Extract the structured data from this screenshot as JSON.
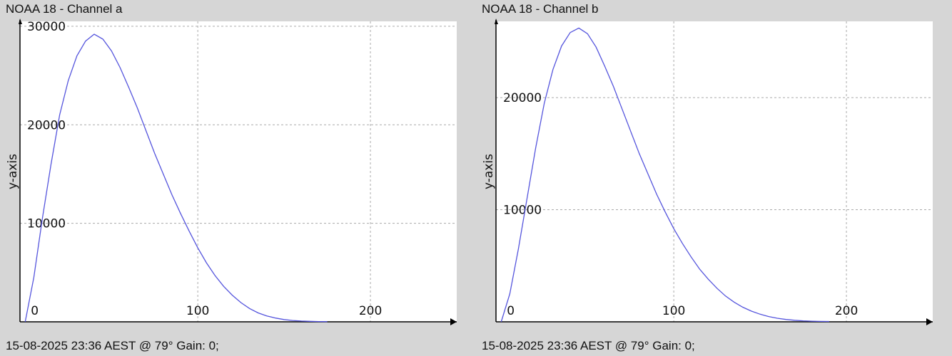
{
  "panels": [
    {
      "title": "NOAA 18 - Channel a",
      "footer": "15-08-2025 23:36 AEST @ 79° Gain: 0;",
      "line_color": "#5555dd"
    },
    {
      "title": "NOAA 18 - Channel b",
      "footer": "15-08-2025 23:36 AEST @ 79° Gain: 0;",
      "line_color": "#5555dd"
    }
  ],
  "chart_data": [
    {
      "type": "line",
      "ylabel": "y-axis",
      "xlim": [
        -3,
        250
      ],
      "ylim": [
        0,
        30500
      ],
      "xticks": [
        0,
        100,
        200
      ],
      "yticks": [
        10000,
        20000,
        30000
      ],
      "grid": true,
      "series": [
        {
          "x": [
            0,
            5,
            10,
            15,
            20,
            25,
            30,
            35,
            40,
            45,
            50,
            55,
            60,
            65,
            70,
            75,
            80,
            85,
            90,
            95,
            100,
            105,
            110,
            115,
            120,
            125,
            130,
            135,
            140,
            145,
            150,
            155,
            160,
            165,
            170,
            175
          ],
          "y": [
            0,
            4500,
            10500,
            16000,
            21000,
            24500,
            27000,
            28500,
            29200,
            28700,
            27500,
            25800,
            23800,
            21700,
            19400,
            17100,
            15000,
            12900,
            11000,
            9200,
            7500,
            6000,
            4700,
            3600,
            2700,
            1950,
            1350,
            900,
            600,
            380,
            230,
            140,
            80,
            50,
            30,
            20
          ]
        }
      ]
    },
    {
      "type": "line",
      "ylabel": "y-axis",
      "xlim": [
        -3,
        250
      ],
      "ylim": [
        0,
        26800
      ],
      "xticks": [
        0,
        100,
        200
      ],
      "yticks": [
        10000,
        20000
      ],
      "grid": true,
      "series": [
        {
          "x": [
            0,
            5,
            10,
            15,
            20,
            25,
            30,
            35,
            40,
            45,
            50,
            55,
            60,
            65,
            70,
            75,
            80,
            85,
            90,
            95,
            100,
            105,
            110,
            115,
            120,
            125,
            130,
            135,
            140,
            145,
            150,
            155,
            160,
            165,
            170,
            175,
            180,
            185,
            190
          ],
          "y": [
            0,
            2500,
            6500,
            11000,
            15500,
            19500,
            22500,
            24600,
            25800,
            26200,
            25700,
            24500,
            22800,
            21000,
            19000,
            17000,
            15000,
            13200,
            11400,
            9800,
            8300,
            7000,
            5800,
            4700,
            3800,
            3000,
            2300,
            1750,
            1300,
            950,
            680,
            470,
            320,
            210,
            140,
            90,
            60,
            40,
            30
          ]
        }
      ]
    }
  ]
}
